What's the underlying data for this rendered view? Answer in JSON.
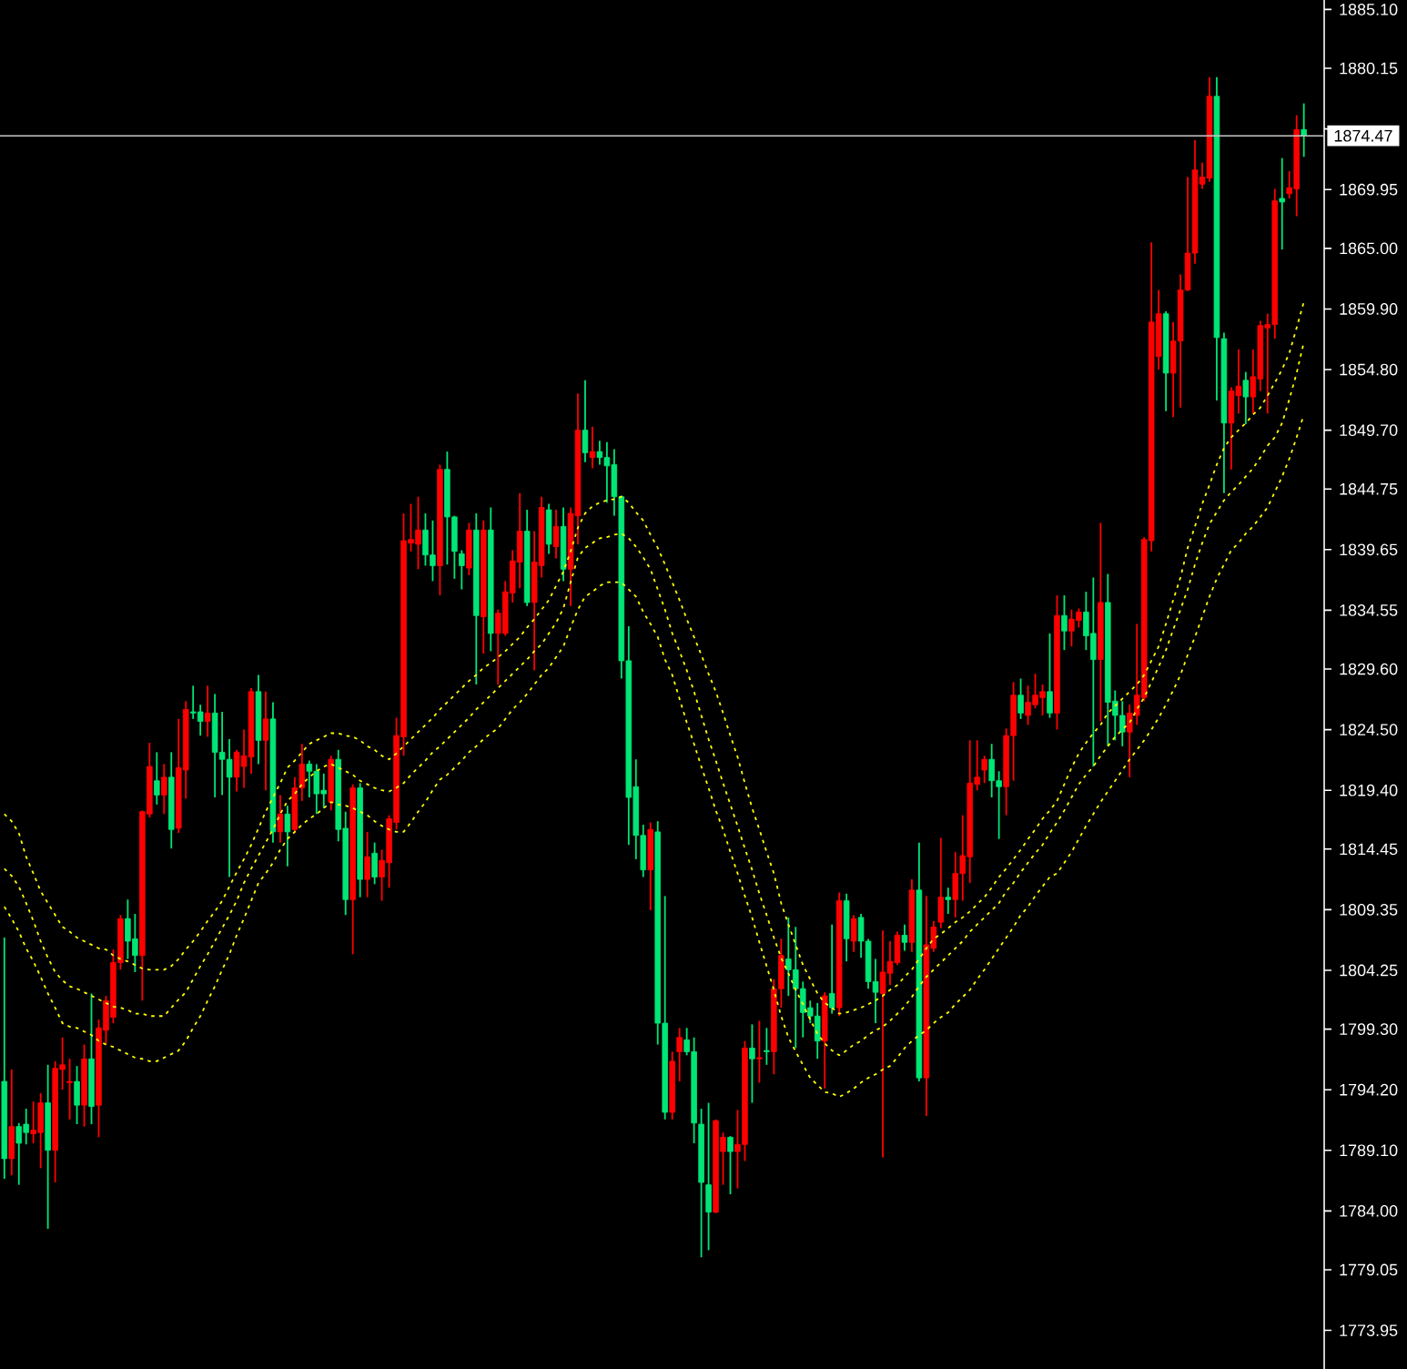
{
  "chart_data": {
    "type": "candlestick",
    "categories": [
      null,
      null,
      null,
      null,
      null,
      null,
      null,
      null,
      null,
      null,
      null,
      null,
      null,
      null,
      null,
      null,
      null,
      null,
      null,
      null,
      null,
      null,
      null,
      null,
      null,
      null,
      null,
      null,
      null,
      null,
      null,
      null,
      null,
      null,
      null,
      null,
      null,
      null,
      null,
      null,
      null,
      null,
      null,
      null,
      null,
      null,
      null,
      null,
      null,
      null,
      null,
      null,
      null,
      null,
      null,
      null,
      null,
      null,
      null,
      null,
      null,
      null,
      null,
      null,
      null,
      null,
      null,
      null,
      null,
      null,
      null,
      null,
      null,
      null,
      null,
      null,
      null,
      null,
      null,
      null,
      null,
      null,
      null,
      null,
      null,
      null,
      null,
      null,
      null,
      null,
      null,
      null,
      null,
      null,
      null,
      null,
      null,
      null,
      null,
      null,
      null,
      null,
      null,
      null,
      null,
      null,
      null,
      null,
      null,
      null,
      null,
      null,
      null,
      null,
      null,
      null,
      null,
      null,
      null,
      null,
      null,
      null,
      null,
      null,
      null,
      null,
      null,
      null,
      null,
      null,
      null,
      null,
      null,
      null,
      null,
      null,
      null,
      null,
      null,
      null,
      null,
      null,
      null,
      null,
      null,
      null,
      null,
      null,
      null,
      null,
      null,
      null,
      null,
      null,
      null,
      null,
      null,
      null,
      null,
      null,
      null,
      null,
      null,
      null,
      null,
      null,
      null,
      null,
      null,
      null,
      null,
      null,
      null,
      null,
      null,
      null,
      null,
      null,
      null,
      null
    ],
    "ohlc": [
      [
        1794.9,
        1807.0,
        1786.7,
        1788.4
      ],
      [
        1788.4,
        1795.9,
        1787.0,
        1791.1
      ],
      [
        1791.1,
        1791.4,
        1786.2,
        1789.7
      ],
      [
        1791.3,
        1792.6,
        1789.6,
        1790.6
      ],
      [
        1790.5,
        1793.2,
        1789.7,
        1790.8
      ],
      [
        1790.6,
        1793.9,
        1787.6,
        1793.1
      ],
      [
        1793.1,
        1796.3,
        1782.5,
        1789.1
      ],
      [
        1789.1,
        1796.6,
        1786.4,
        1796.0
      ],
      [
        1795.9,
        1798.6,
        1794.2,
        1796.3
      ],
      [
        1794.8,
        1796.8,
        1791.7,
        1794.9
      ],
      [
        1794.9,
        1796.2,
        1791.3,
        1792.9
      ],
      [
        1792.9,
        1798.0,
        1791.1,
        1796.8
      ],
      [
        1796.8,
        1802.3,
        1791.3,
        1792.8
      ],
      [
        1792.9,
        1800.1,
        1790.2,
        1799.4
      ],
      [
        1799.2,
        1802.1,
        1798.0,
        1801.7
      ],
      [
        1800.3,
        1806.0,
        1799.8,
        1804.9
      ],
      [
        1804.9,
        1808.9,
        1804.3,
        1808.6
      ],
      [
        1808.6,
        1810.2,
        1805.2,
        1806.7
      ],
      [
        1806.9,
        1809.0,
        1804.1,
        1805.5
      ],
      [
        1805.5,
        1817.7,
        1801.7,
        1817.6
      ],
      [
        1817.4,
        1823.4,
        1817.1,
        1821.4
      ],
      [
        1820.2,
        1822.6,
        1818.2,
        1819.0
      ],
      [
        1819.0,
        1821.6,
        1817.4,
        1820.5
      ],
      [
        1820.5,
        1822.6,
        1814.5,
        1816.1
      ],
      [
        1816.2,
        1825.4,
        1815.8,
        1821.3
      ],
      [
        1821.1,
        1826.9,
        1818.7,
        1826.2
      ],
      [
        1826.0,
        1828.2,
        1825.4,
        1825.9
      ],
      [
        1826.0,
        1826.6,
        1824.0,
        1825.2
      ],
      [
        1825.2,
        1828.2,
        1823.9,
        1825.9
      ],
      [
        1825.9,
        1827.5,
        1818.8,
        1822.6
      ],
      [
        1822.6,
        1826.0,
        1819.0,
        1822.0
      ],
      [
        1822.0,
        1823.7,
        1812.1,
        1820.5
      ],
      [
        1820.5,
        1822.8,
        1819.3,
        1822.6
      ],
      [
        1821.4,
        1824.5,
        1819.6,
        1822.3
      ],
      [
        1822.2,
        1828.0,
        1820.8,
        1827.7
      ],
      [
        1827.7,
        1829.1,
        1821.6,
        1823.6
      ],
      [
        1823.6,
        1827.7,
        1819.4,
        1825.4
      ],
      [
        1825.4,
        1826.8,
        1815.0,
        1815.9
      ],
      [
        1815.9,
        1819.0,
        1815.0,
        1817.4
      ],
      [
        1817.4,
        1818.1,
        1813.0,
        1815.9
      ],
      [
        1816.1,
        1820.5,
        1815.8,
        1819.6
      ],
      [
        1819.6,
        1823.3,
        1818.5,
        1821.6
      ],
      [
        1821.6,
        1821.9,
        1818.8,
        1821.0
      ],
      [
        1821.0,
        1821.6,
        1817.4,
        1819.1
      ],
      [
        1819.4,
        1820.8,
        1817.9,
        1819.1
      ],
      [
        1818.4,
        1822.3,
        1817.7,
        1822.0
      ],
      [
        1822.0,
        1822.8,
        1815.1,
        1816.1
      ],
      [
        1816.2,
        1817.6,
        1808.9,
        1810.2
      ],
      [
        1810.2,
        1819.9,
        1805.6,
        1819.6
      ],
      [
        1819.6,
        1820.0,
        1810.4,
        1811.9
      ],
      [
        1811.9,
        1815.9,
        1810.4,
        1813.8
      ],
      [
        1814.1,
        1815.0,
        1811.5,
        1812.1
      ],
      [
        1812.1,
        1814.4,
        1810.1,
        1813.5
      ],
      [
        1813.3,
        1817.3,
        1811.2,
        1817.0
      ],
      [
        1816.7,
        1825.5,
        1816.1,
        1824.0
      ],
      [
        1823.9,
        1842.7,
        1822.3,
        1840.4
      ],
      [
        1840.2,
        1843.5,
        1839.5,
        1840.5
      ],
      [
        1840.1,
        1844.1,
        1838.0,
        1841.3
      ],
      [
        1841.3,
        1842.7,
        1838.3,
        1839.2
      ],
      [
        1839.2,
        1842.1,
        1837.0,
        1838.3
      ],
      [
        1838.3,
        1846.8,
        1835.8,
        1846.4
      ],
      [
        1846.4,
        1847.9,
        1838.4,
        1842.4
      ],
      [
        1842.4,
        1842.5,
        1837.2,
        1839.5
      ],
      [
        1839.3,
        1839.6,
        1836.3,
        1838.3
      ],
      [
        1838.1,
        1841.9,
        1837.5,
        1841.3
      ],
      [
        1841.3,
        1842.7,
        1828.3,
        1834.1
      ],
      [
        1834.0,
        1842.1,
        1830.9,
        1841.3
      ],
      [
        1841.3,
        1843.2,
        1831.1,
        1832.6
      ],
      [
        1832.6,
        1834.6,
        1828.3,
        1834.3
      ],
      [
        1832.6,
        1837.0,
        1832.4,
        1836.1
      ],
      [
        1836.0,
        1839.6,
        1835.2,
        1838.7
      ],
      [
        1838.6,
        1844.4,
        1836.4,
        1841.2
      ],
      [
        1841.2,
        1843.0,
        1834.9,
        1835.2
      ],
      [
        1835.2,
        1841.2,
        1829.5,
        1838.6
      ],
      [
        1838.3,
        1844.1,
        1837.3,
        1843.2
      ],
      [
        1843.0,
        1843.5,
        1839.3,
        1840.1
      ],
      [
        1839.9,
        1843.0,
        1838.9,
        1841.6
      ],
      [
        1841.6,
        1843.2,
        1837.0,
        1838.0
      ],
      [
        1838.0,
        1843.2,
        1834.9,
        1842.7
      ],
      [
        1842.5,
        1852.8,
        1840.1,
        1849.7
      ],
      [
        1849.7,
        1853.9,
        1847.0,
        1847.8
      ],
      [
        1847.4,
        1850.0,
        1846.5,
        1847.9
      ],
      [
        1847.9,
        1848.8,
        1846.8,
        1847.4
      ],
      [
        1847.4,
        1848.7,
        1843.6,
        1846.7
      ],
      [
        1846.8,
        1848.1,
        1842.5,
        1844.1
      ],
      [
        1844.1,
        1844.2,
        1828.8,
        1830.3
      ],
      [
        1830.3,
        1833.2,
        1814.8,
        1818.8
      ],
      [
        1819.7,
        1822.0,
        1813.6,
        1815.6
      ],
      [
        1815.6,
        1816.5,
        1812.1,
        1812.7
      ],
      [
        1812.7,
        1816.7,
        1809.3,
        1816.1
      ],
      [
        1815.9,
        1816.8,
        1798.0,
        1799.8
      ],
      [
        1799.8,
        1810.5,
        1791.7,
        1792.3
      ],
      [
        1792.3,
        1797.4,
        1791.7,
        1796.6
      ],
      [
        1797.4,
        1799.4,
        1794.9,
        1798.6
      ],
      [
        1798.4,
        1799.4,
        1797.1,
        1797.4
      ],
      [
        1797.4,
        1798.6,
        1789.7,
        1791.4
      ],
      [
        1791.3,
        1792.6,
        1780.1,
        1786.4
      ],
      [
        1786.2,
        1793.1,
        1780.7,
        1783.9
      ],
      [
        1783.9,
        1791.7,
        1783.8,
        1791.6
      ],
      [
        1789.0,
        1790.6,
        1786.2,
        1790.2
      ],
      [
        1790.2,
        1790.3,
        1785.4,
        1789.0
      ],
      [
        1789.0,
        1792.5,
        1785.9,
        1789.6
      ],
      [
        1789.6,
        1798.3,
        1788.2,
        1797.7
      ],
      [
        1797.7,
        1799.7,
        1793.1,
        1796.8
      ],
      [
        1796.8,
        1800.0,
        1794.8,
        1796.9
      ],
      [
        1797.5,
        1799.4,
        1796.3,
        1797.4
      ],
      [
        1797.4,
        1803.5,
        1795.5,
        1802.7
      ],
      [
        1802.7,
        1806.9,
        1801.1,
        1805.5
      ],
      [
        1805.2,
        1808.7,
        1802.1,
        1804.3
      ],
      [
        1804.3,
        1807.9,
        1797.7,
        1802.7
      ],
      [
        1802.7,
        1803.3,
        1798.6,
        1800.7
      ],
      [
        1801.1,
        1801.7,
        1799.8,
        1800.4
      ],
      [
        1800.4,
        1801.5,
        1796.8,
        1798.3
      ],
      [
        1798.3,
        1802.4,
        1794.3,
        1802.1
      ],
      [
        1802.3,
        1808.1,
        1800.6,
        1801.1
      ],
      [
        1801.1,
        1810.8,
        1800.4,
        1810.1
      ],
      [
        1810.1,
        1810.7,
        1805.0,
        1806.9
      ],
      [
        1806.7,
        1808.9,
        1805.8,
        1808.6
      ],
      [
        1808.7,
        1809.0,
        1805.3,
        1806.7
      ],
      [
        1806.7,
        1806.9,
        1802.7,
        1803.3
      ],
      [
        1803.3,
        1805.2,
        1799.8,
        1802.4
      ],
      [
        1802.3,
        1807.6,
        1788.5,
        1804.1
      ],
      [
        1804.0,
        1806.7,
        1803.0,
        1805.0
      ],
      [
        1804.9,
        1807.5,
        1804.7,
        1807.2
      ],
      [
        1807.2,
        1808.1,
        1805.9,
        1806.6
      ],
      [
        1806.6,
        1811.9,
        1805.8,
        1811.0
      ],
      [
        1811.0,
        1815.0,
        1794.9,
        1795.2
      ],
      [
        1795.2,
        1810.5,
        1792.0,
        1806.4
      ],
      [
        1806.1,
        1808.4,
        1805.8,
        1807.9
      ],
      [
        1808.3,
        1815.4,
        1807.8,
        1810.4
      ],
      [
        1810.4,
        1811.2,
        1809.0,
        1810.2
      ],
      [
        1810.2,
        1814.2,
        1808.7,
        1812.4
      ],
      [
        1812.4,
        1817.3,
        1810.1,
        1813.9
      ],
      [
        1813.8,
        1823.6,
        1811.6,
        1820.0
      ],
      [
        1819.9,
        1823.6,
        1819.4,
        1820.5
      ],
      [
        1821.1,
        1822.3,
        1820.0,
        1822.0
      ],
      [
        1822.0,
        1823.3,
        1818.8,
        1820.2
      ],
      [
        1820.2,
        1821.0,
        1815.3,
        1819.7
      ],
      [
        1819.7,
        1824.6,
        1817.3,
        1824.0
      ],
      [
        1824.0,
        1828.5,
        1820.2,
        1827.4
      ],
      [
        1827.4,
        1828.8,
        1825.4,
        1825.9
      ],
      [
        1825.7,
        1828.2,
        1824.9,
        1826.8
      ],
      [
        1826.6,
        1829.2,
        1826.3,
        1827.4
      ],
      [
        1827.2,
        1828.3,
        1825.7,
        1827.7
      ],
      [
        1827.7,
        1832.6,
        1825.5,
        1825.9
      ],
      [
        1825.9,
        1835.8,
        1824.5,
        1834.1
      ],
      [
        1834.1,
        1835.8,
        1831.2,
        1832.8
      ],
      [
        1832.8,
        1834.6,
        1831.5,
        1833.8
      ],
      [
        1833.7,
        1834.7,
        1833.1,
        1834.4
      ],
      [
        1834.4,
        1836.1,
        1831.2,
        1832.4
      ],
      [
        1832.6,
        1837.3,
        1821.4,
        1830.4
      ],
      [
        1830.4,
        1841.9,
        1825.2,
        1835.2
      ],
      [
        1835.2,
        1837.6,
        1823.1,
        1826.8
      ],
      [
        1826.9,
        1827.8,
        1823.6,
        1825.7
      ],
      [
        1825.7,
        1826.9,
        1823.1,
        1824.3
      ],
      [
        1824.3,
        1826.6,
        1820.5,
        1825.9
      ],
      [
        1825.7,
        1833.4,
        1824.9,
        1827.4
      ],
      [
        1827.2,
        1840.7,
        1826.9,
        1840.5
      ],
      [
        1840.4,
        1865.5,
        1839.5,
        1858.8
      ],
      [
        1855.9,
        1861.5,
        1854.8,
        1859.5
      ],
      [
        1859.5,
        1859.7,
        1851.3,
        1854.5
      ],
      [
        1854.5,
        1858.8,
        1850.8,
        1857.2
      ],
      [
        1857.2,
        1862.8,
        1851.6,
        1861.5
      ],
      [
        1861.5,
        1871.0,
        1861.4,
        1864.6
      ],
      [
        1864.6,
        1874.1,
        1863.7,
        1871.6
      ],
      [
        1870.4,
        1872.2,
        1870.0,
        1871.0
      ],
      [
        1870.9,
        1879.4,
        1870.6,
        1877.8
      ],
      [
        1877.8,
        1879.4,
        1852.2,
        1857.5
      ],
      [
        1857.4,
        1857.9,
        1844.4,
        1850.3
      ],
      [
        1850.3,
        1853.3,
        1846.4,
        1853.0
      ],
      [
        1852.6,
        1856.5,
        1851.1,
        1853.4
      ],
      [
        1853.9,
        1854.6,
        1850.2,
        1852.5
      ],
      [
        1852.5,
        1856.5,
        1851.1,
        1854.2
      ],
      [
        1854.0,
        1858.9,
        1853.0,
        1858.5
      ],
      [
        1858.3,
        1859.5,
        1851.1,
        1858.6
      ],
      [
        1858.6,
        1870.0,
        1857.4,
        1869.0
      ],
      [
        1869.2,
        1872.6,
        1864.9,
        1868.9
      ],
      [
        1869.6,
        1871.5,
        1869.2,
        1870.1
      ],
      [
        1870.0,
        1876.2,
        1867.7,
        1875.0
      ],
      [
        1875.0,
        1877.2,
        1872.7,
        1874.47
      ]
    ],
    "colors": [
      "#00e676",
      "#ff0000",
      "#00e676",
      "#00e676",
      "#ff0000",
      "#ff0000",
      "#00e676",
      "#ff0000",
      "#ff0000",
      "#ff0000",
      "#00e676",
      "#ff0000",
      "#00e676",
      "#ff0000",
      "#ff0000",
      "#ff0000",
      "#ff0000",
      "#00e676",
      "#00e676",
      "#ff0000",
      "#ff0000",
      "#00e676",
      "#ff0000",
      "#00e676",
      "#ff0000",
      "#ff0000",
      "#00e676",
      "#00e676",
      "#ff0000",
      "#00e676",
      "#00e676",
      "#00e676",
      "#ff0000",
      "#ff0000",
      "#ff0000",
      "#00e676",
      "#ff0000",
      "#00e676",
      "#ff0000",
      "#00e676",
      "#ff0000",
      "#ff0000",
      "#00e676",
      "#00e676",
      "#00e676",
      "#ff0000",
      "#00e676",
      "#00e676",
      "#ff0000",
      "#00e676",
      "#ff0000",
      "#00e676",
      "#ff0000",
      "#ff0000",
      "#ff0000",
      "#ff0000",
      "#ff0000",
      "#ff0000",
      "#00e676",
      "#00e676",
      "#ff0000",
      "#00e676",
      "#00e676",
      "#00e676",
      "#ff0000",
      "#00e676",
      "#ff0000",
      "#00e676",
      "#ff0000",
      "#ff0000",
      "#ff0000",
      "#ff0000",
      "#00e676",
      "#ff0000",
      "#ff0000",
      "#00e676",
      "#ff0000",
      "#00e676",
      "#ff0000",
      "#ff0000",
      "#00e676",
      "#ff0000",
      "#00e676",
      "#00e676",
      "#00e676",
      "#00e676",
      "#00e676",
      "#00e676",
      "#00e676",
      "#ff0000",
      "#00e676",
      "#00e676",
      "#ff0000",
      "#ff0000",
      "#00e676",
      "#00e676",
      "#00e676",
      "#00e676",
      "#ff0000",
      "#ff0000",
      "#00e676",
      "#ff0000",
      "#ff0000",
      "#00e676",
      "#ff0000",
      "#00e676",
      "#ff0000",
      "#ff0000",
      "#00e676",
      "#00e676",
      "#00e676",
      "#00e676",
      "#00e676",
      "#ff0000",
      "#00e676",
      "#ff0000",
      "#00e676",
      "#ff0000",
      "#00e676",
      "#00e676",
      "#00e676",
      "#ff0000",
      "#ff0000",
      "#ff0000",
      "#00e676",
      "#ff0000",
      "#00e676",
      "#ff0000",
      "#ff0000",
      "#ff0000",
      "#00e676",
      "#ff0000",
      "#ff0000",
      "#ff0000",
      "#ff0000",
      "#ff0000",
      "#00e676",
      "#00e676",
      "#ff0000",
      "#ff0000",
      "#00e676",
      "#ff0000",
      "#ff0000",
      "#ff0000",
      "#00e676",
      "#ff0000",
      "#00e676",
      "#ff0000",
      "#ff0000",
      "#00e676",
      "#00e676",
      "#ff0000",
      "#00e676",
      "#00e676",
      "#00e676",
      "#ff0000",
      "#ff0000",
      "#ff0000",
      "#ff0000",
      "#ff0000",
      "#00e676",
      "#ff0000",
      "#ff0000",
      "#ff0000",
      "#ff0000",
      "#ff0000",
      "#ff0000",
      "#00e676",
      "#00e676",
      "#ff0000",
      "#ff0000",
      "#00e676",
      "#ff0000",
      "#ff0000",
      "#ff0000",
      "#ff0000",
      "#00e676",
      "#ff0000",
      "#ff0000",
      "#00e676"
    ],
    "series": [
      {
        "type": "line",
        "color": "#ffff00",
        "line_style": "dotted",
        "values": [
          1817.4,
          1816.8,
          1815.8,
          1813.8,
          1812.4,
          1810.9,
          1809.9,
          1808.9,
          1807.9,
          1807.5,
          1807.0,
          1806.7,
          1806.4,
          1806.1,
          1806.0,
          1805.5,
          1805.2,
          1805.0,
          1804.7,
          1804.4,
          1804.3,
          1804.3,
          1804.3,
          1804.6,
          1805.2,
          1806.0,
          1806.7,
          1807.5,
          1808.4,
          1809.2,
          1810.1,
          1811.3,
          1812.5,
          1813.6,
          1814.8,
          1816.2,
          1817.6,
          1818.8,
          1820.0,
          1821.3,
          1821.9,
          1822.6,
          1823.3,
          1823.6,
          1823.9,
          1824.2,
          1824.2,
          1824.0,
          1823.9,
          1823.6,
          1823.1,
          1822.8,
          1822.3,
          1822.0,
          1822.5,
          1823.1,
          1823.7,
          1824.3,
          1824.9,
          1825.5,
          1826.2,
          1826.8,
          1827.4,
          1828.0,
          1828.6,
          1829.1,
          1829.7,
          1830.1,
          1830.6,
          1831.1,
          1831.7,
          1832.3,
          1833.1,
          1833.8,
          1834.6,
          1835.4,
          1836.6,
          1837.8,
          1839.5,
          1841.5,
          1842.7,
          1843.3,
          1843.6,
          1843.8,
          1843.9,
          1844.1,
          1843.6,
          1842.8,
          1842.1,
          1840.9,
          1839.8,
          1838.4,
          1836.9,
          1835.4,
          1833.8,
          1832.3,
          1830.8,
          1829.2,
          1827.7,
          1825.9,
          1824.0,
          1822.2,
          1820.0,
          1817.9,
          1816.1,
          1814.2,
          1812.4,
          1809.9,
          1808.1,
          1806.4,
          1804.7,
          1803.5,
          1802.3,
          1801.5,
          1801.1,
          1800.6,
          1800.7,
          1800.9,
          1801.1,
          1801.4,
          1801.7,
          1802.1,
          1802.6,
          1803.0,
          1803.7,
          1804.3,
          1805.2,
          1806.1,
          1806.9,
          1807.3,
          1807.8,
          1808.3,
          1808.7,
          1809.2,
          1809.8,
          1810.4,
          1811.2,
          1812.1,
          1812.8,
          1813.6,
          1814.4,
          1815.3,
          1816.1,
          1817.0,
          1817.7,
          1818.5,
          1819.9,
          1821.3,
          1822.5,
          1823.4,
          1824.2,
          1824.9,
          1825.9,
          1826.5,
          1827.1,
          1827.7,
          1828.3,
          1829.1,
          1830.3,
          1831.5,
          1833.4,
          1835.4,
          1837.3,
          1839.8,
          1841.6,
          1843.5,
          1845.1,
          1846.8,
          1848.2,
          1849.1,
          1849.7,
          1850.3,
          1851.0,
          1851.6,
          1852.6,
          1853.7,
          1854.8,
          1856.2,
          1858.3,
          1860.5
        ]
      },
      {
        "type": "line",
        "color": "#ffff00",
        "line_style": "dotted",
        "values": [
          1812.8,
          1812.2,
          1811.3,
          1809.9,
          1808.4,
          1806.7,
          1805.3,
          1804.1,
          1803.4,
          1802.9,
          1802.7,
          1802.4,
          1802.1,
          1801.8,
          1801.5,
          1801.2,
          1801.1,
          1800.9,
          1800.6,
          1800.6,
          1800.4,
          1800.4,
          1800.4,
          1801.1,
          1801.8,
          1802.4,
          1803.5,
          1804.6,
          1805.6,
          1806.7,
          1807.8,
          1808.9,
          1810.1,
          1811.6,
          1812.8,
          1813.9,
          1815.0,
          1816.1,
          1817.4,
          1818.5,
          1819.1,
          1819.9,
          1820.5,
          1821.0,
          1821.4,
          1821.6,
          1821.3,
          1821.0,
          1820.7,
          1820.2,
          1819.9,
          1819.6,
          1819.4,
          1819.3,
          1819.6,
          1820.0,
          1820.7,
          1821.3,
          1821.9,
          1822.6,
          1823.1,
          1823.7,
          1824.3,
          1824.9,
          1825.5,
          1826.2,
          1826.8,
          1827.4,
          1828.0,
          1828.6,
          1829.2,
          1829.8,
          1830.4,
          1831.1,
          1831.7,
          1832.6,
          1833.5,
          1834.7,
          1836.9,
          1839.0,
          1839.8,
          1840.2,
          1840.6,
          1840.7,
          1840.9,
          1841.0,
          1840.6,
          1839.9,
          1839.0,
          1838.0,
          1836.3,
          1834.6,
          1832.6,
          1831.1,
          1829.5,
          1827.7,
          1825.7,
          1823.7,
          1821.9,
          1820.0,
          1818.2,
          1816.4,
          1814.5,
          1812.7,
          1810.7,
          1808.9,
          1807.0,
          1805.3,
          1804.0,
          1802.6,
          1801.4,
          1800.1,
          1798.9,
          1798.1,
          1797.5,
          1797.1,
          1797.5,
          1798.0,
          1798.3,
          1798.8,
          1799.2,
          1799.5,
          1800.0,
          1800.6,
          1801.2,
          1802.0,
          1802.9,
          1803.7,
          1804.3,
          1804.9,
          1805.5,
          1806.1,
          1806.7,
          1807.5,
          1808.1,
          1808.7,
          1809.3,
          1809.9,
          1810.9,
          1811.6,
          1812.5,
          1813.3,
          1814.1,
          1814.8,
          1815.8,
          1816.7,
          1817.7,
          1818.8,
          1819.9,
          1820.7,
          1821.4,
          1822.3,
          1823.1,
          1823.9,
          1824.5,
          1825.1,
          1826.2,
          1827.2,
          1828.5,
          1829.8,
          1831.2,
          1832.9,
          1834.6,
          1836.3,
          1838.4,
          1840.2,
          1841.8,
          1842.8,
          1843.8,
          1844.5,
          1845.1,
          1845.8,
          1846.5,
          1847.4,
          1848.4,
          1849.1,
          1850.3,
          1852.3,
          1854.5,
          1857.1
        ]
      },
      {
        "type": "line",
        "color": "#ffff00",
        "line_style": "dotted",
        "values": [
          1809.6,
          1808.6,
          1807.5,
          1806.1,
          1805.0,
          1803.7,
          1802.3,
          1801.1,
          1799.8,
          1799.5,
          1799.4,
          1799.1,
          1798.8,
          1798.3,
          1798.0,
          1797.8,
          1797.5,
          1797.2,
          1796.9,
          1796.8,
          1796.6,
          1796.6,
          1796.9,
          1797.2,
          1797.5,
          1798.3,
          1799.4,
          1800.4,
          1801.7,
          1802.9,
          1804.3,
          1805.6,
          1807.2,
          1808.6,
          1810.1,
          1811.6,
          1812.4,
          1813.3,
          1814.4,
          1815.3,
          1815.9,
          1816.5,
          1817.0,
          1817.4,
          1817.9,
          1818.4,
          1818.2,
          1818.1,
          1817.9,
          1817.6,
          1817.3,
          1816.8,
          1816.4,
          1816.1,
          1815.9,
          1815.9,
          1816.7,
          1817.6,
          1818.4,
          1819.4,
          1820.3,
          1820.7,
          1821.3,
          1821.9,
          1822.6,
          1823.1,
          1823.7,
          1824.2,
          1824.6,
          1825.4,
          1826.2,
          1826.8,
          1827.5,
          1828.3,
          1829.1,
          1829.7,
          1830.6,
          1831.5,
          1833.1,
          1834.6,
          1835.7,
          1836.1,
          1836.6,
          1836.9,
          1836.9,
          1836.9,
          1836.3,
          1835.7,
          1834.4,
          1833.4,
          1832.3,
          1830.4,
          1829.1,
          1827.1,
          1825.1,
          1823.3,
          1821.4,
          1819.6,
          1817.7,
          1816.1,
          1814.2,
          1812.4,
          1810.5,
          1808.7,
          1806.6,
          1804.6,
          1802.6,
          1800.4,
          1798.6,
          1797.4,
          1796.3,
          1795.2,
          1794.6,
          1794.0,
          1793.9,
          1793.6,
          1793.9,
          1794.3,
          1794.8,
          1795.2,
          1795.5,
          1795.9,
          1796.2,
          1796.9,
          1797.7,
          1798.3,
          1798.8,
          1799.2,
          1799.8,
          1800.3,
          1800.7,
          1801.4,
          1802.0,
          1802.6,
          1803.5,
          1804.3,
          1805.2,
          1806.1,
          1807.0,
          1807.9,
          1808.9,
          1809.6,
          1810.5,
          1811.3,
          1812.1,
          1812.4,
          1813.3,
          1814.2,
          1815.3,
          1816.4,
          1817.4,
          1818.4,
          1819.3,
          1820.2,
          1821.1,
          1822.0,
          1822.8,
          1823.6,
          1824.5,
          1825.5,
          1826.6,
          1827.8,
          1829.1,
          1830.8,
          1832.3,
          1834.0,
          1835.7,
          1837.2,
          1838.4,
          1839.6,
          1840.2,
          1841.0,
          1841.6,
          1842.4,
          1843.2,
          1844.5,
          1845.8,
          1847.3,
          1849.1,
          1851.0
        ]
      }
    ],
    "ylim": [
      1770.7,
      1885.9
    ],
    "yticks": [
      {
        "value": 1885.1,
        "label": "1885.10"
      },
      {
        "value": 1880.15,
        "label": "1880.15"
      },
      {
        "value": 1875.05,
        "label": null
      },
      {
        "value": 1869.95,
        "label": "1869.95"
      },
      {
        "value": 1865.0,
        "label": "1865.00"
      },
      {
        "value": 1859.9,
        "label": "1859.90"
      },
      {
        "value": 1854.8,
        "label": "1854.80"
      },
      {
        "value": 1849.7,
        "label": "1849.70"
      },
      {
        "value": 1844.75,
        "label": "1844.75"
      },
      {
        "value": 1839.65,
        "label": "1839.65"
      },
      {
        "value": 1834.55,
        "label": "1834.55"
      },
      {
        "value": 1829.6,
        "label": "1829.60"
      },
      {
        "value": 1824.5,
        "label": "1824.50"
      },
      {
        "value": 1819.4,
        "label": "1819.40"
      },
      {
        "value": 1814.45,
        "label": "1814.45"
      },
      {
        "value": 1809.35,
        "label": "1809.35"
      },
      {
        "value": 1804.25,
        "label": "1804.25"
      },
      {
        "value": 1799.3,
        "label": "1799.30"
      },
      {
        "value": 1794.2,
        "label": "1794.20"
      },
      {
        "value": 1789.1,
        "label": "1789.10"
      },
      {
        "value": 1784.0,
        "label": "1784.00"
      },
      {
        "value": 1779.05,
        "label": "1779.05"
      },
      {
        "value": 1773.95,
        "label": "1773.95"
      }
    ],
    "tick_labels": "y",
    "ref_lines": [
      {
        "axis": "y",
        "value": 1874.47,
        "label": "1874.47",
        "color": "#c8c8c8"
      }
    ]
  }
}
